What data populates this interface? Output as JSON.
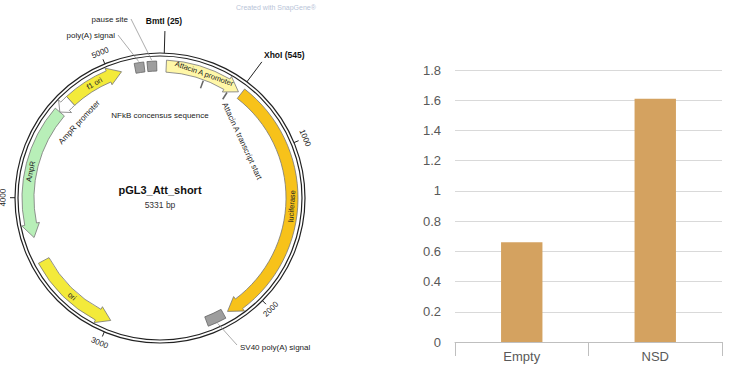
{
  "chart_data": {
    "type": "bar",
    "categories": [
      "Empty",
      "NSD"
    ],
    "values": [
      0.66,
      1.61
    ],
    "color": "#d4a260",
    "ylim": [
      0,
      1.8
    ],
    "yticks": [
      0,
      0.2,
      0.4,
      0.6,
      0.8,
      1,
      1.2,
      1.4,
      1.6,
      1.8
    ],
    "grid": true
  },
  "plasmid_map": {
    "watermark": "Created with SnapGene®",
    "name": "pGL3_Att_short",
    "length_label": "5331 bp",
    "length": 5331,
    "ticks": [
      1000,
      2000,
      3000,
      4000,
      5000
    ],
    "sites": [
      {
        "text": "BmtI (25)",
        "position": 25
      },
      {
        "text": "XhoI (545)",
        "position": 545
      }
    ],
    "features": [
      {
        "label": "pause site",
        "kind": "box",
        "start": 5250,
        "end": 5310,
        "color": "#9e9e9e"
      },
      {
        "label": "poly(A) signal",
        "kind": "box",
        "start": 5170,
        "end": 5230,
        "color": "#9e9e9e"
      },
      {
        "label": "Attacin A promoter",
        "kind": "arrow",
        "direction": "forward",
        "start": 40,
        "end": 540,
        "color": "#fff7a8"
      },
      {
        "label": "NFkB concensus sequence",
        "kind": "site",
        "position": 300
      },
      {
        "label": "Attacin A transcript start",
        "kind": "site",
        "position": 480
      },
      {
        "label": "luciferase",
        "kind": "arrow",
        "direction": "forward",
        "start": 560,
        "end": 2210,
        "color": "#f7c21a"
      },
      {
        "label": "SV40 poly(A) signal",
        "kind": "box",
        "start": 2240,
        "end": 2360,
        "color": "#9e9e9e"
      },
      {
        "label": "ori",
        "kind": "arrow",
        "direction": "reverse",
        "start": 2990,
        "end": 3580,
        "color": "#f3ea3a"
      },
      {
        "label": "AmpR",
        "kind": "arrow",
        "direction": "reverse",
        "start": 3740,
        "end": 4600,
        "color": "#b8efb8"
      },
      {
        "label": "AmpR promoter",
        "kind": "arrow",
        "direction": "reverse",
        "start": 4600,
        "end": 4700,
        "color": "#ffffff"
      },
      {
        "label": "f1 ori",
        "kind": "arrow",
        "direction": "forward",
        "start": 4700,
        "end": 5080,
        "color": "#f3ea3a"
      }
    ]
  }
}
